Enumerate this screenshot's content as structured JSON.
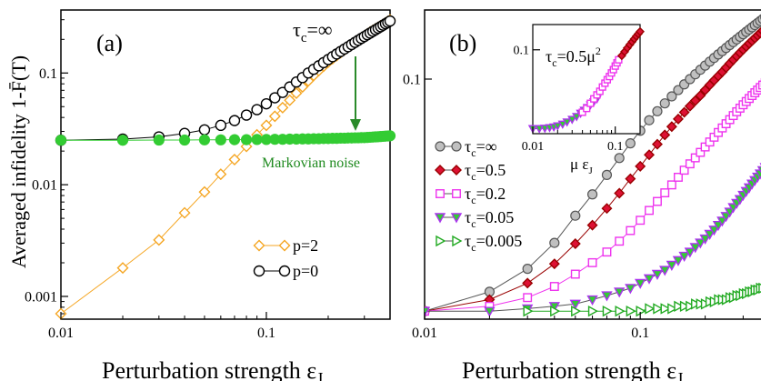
{
  "chart_data": [
    {
      "type": "line",
      "panel_label": "(a)",
      "xlabel": "Perturbation strength ε",
      "xlabel_sub": "J",
      "ylabel": "Averaged infidelity 1-F̄(T)",
      "xscale": "log",
      "yscale": "log",
      "xlim": [
        0.01,
        0.4
      ],
      "ylim": [
        0.0007,
        0.34
      ],
      "xticks": [
        {
          "value": 0.01,
          "label": "0.01"
        },
        {
          "value": 0.1,
          "label": "0.1"
        }
      ],
      "yticks": [
        {
          "value": 0.001,
          "label": "0.001"
        },
        {
          "value": 0.01,
          "label": "0.01"
        },
        {
          "value": 0.1,
          "label": "0.1"
        }
      ],
      "series": [
        {
          "name": "p=2",
          "marker": "diamond-open",
          "color": "#f5a623",
          "x": [
            0.01,
            0.02,
            0.03,
            0.04,
            0.05,
            0.06,
            0.07,
            0.08,
            0.09,
            0.1,
            0.11,
            0.12,
            0.13,
            0.14,
            0.15,
            0.16,
            0.17,
            0.18,
            0.19,
            0.2,
            0.21,
            0.22,
            0.23,
            0.24,
            0.25,
            0.26,
            0.27,
            0.28,
            0.29,
            0.3,
            0.31,
            0.32,
            0.33,
            0.34,
            0.35,
            0.36,
            0.37,
            0.38,
            0.39,
            0.4
          ],
          "y": [
            0.0007,
            0.0018,
            0.0032,
            0.0056,
            0.0086,
            0.0124,
            0.0168,
            0.022,
            0.028,
            0.034,
            0.041,
            0.049,
            0.057,
            0.066,
            0.075,
            0.085,
            0.095,
            0.105,
            0.115,
            0.125,
            0.134,
            0.143,
            0.152,
            0.161,
            0.17,
            0.179,
            0.188,
            0.197,
            0.206,
            0.215,
            0.224,
            0.233,
            0.241,
            0.249,
            0.257,
            0.265,
            0.273,
            0.281,
            0.29,
            0.298
          ]
        },
        {
          "name": "p=0",
          "marker": "circle-open",
          "color": "#000000",
          "x": [
            0.01,
            0.02,
            0.03,
            0.04,
            0.05,
            0.06,
            0.07,
            0.08,
            0.09,
            0.1,
            0.11,
            0.12,
            0.13,
            0.14,
            0.15,
            0.16,
            0.17,
            0.18,
            0.19,
            0.2,
            0.21,
            0.22,
            0.23,
            0.24,
            0.25,
            0.26,
            0.27,
            0.28,
            0.29,
            0.3,
            0.31,
            0.32,
            0.33,
            0.34,
            0.35,
            0.36,
            0.37,
            0.38,
            0.39,
            0.4
          ],
          "y": [
            0.025,
            0.0256,
            0.0268,
            0.0288,
            0.031,
            0.034,
            0.0375,
            0.042,
            0.047,
            0.053,
            0.06,
            0.067,
            0.075,
            0.083,
            0.091,
            0.1,
            0.108,
            0.116,
            0.124,
            0.132,
            0.14,
            0.148,
            0.156,
            0.164,
            0.172,
            0.18,
            0.188,
            0.196,
            0.204,
            0.212,
            0.22,
            0.228,
            0.236,
            0.244,
            0.252,
            0.26,
            0.268,
            0.276,
            0.284,
            0.292
          ]
        },
        {
          "name": "Markovian noise",
          "marker": "circle-filled",
          "color": "#33cc33",
          "x": [
            0.01,
            0.02,
            0.03,
            0.04,
            0.05,
            0.06,
            0.07,
            0.08,
            0.09,
            0.1,
            0.11,
            0.12,
            0.13,
            0.14,
            0.15,
            0.16,
            0.17,
            0.18,
            0.19,
            0.2,
            0.21,
            0.22,
            0.23,
            0.24,
            0.25,
            0.26,
            0.27,
            0.28,
            0.29,
            0.3,
            0.31,
            0.32,
            0.33,
            0.34,
            0.35,
            0.36,
            0.37,
            0.38,
            0.39,
            0.4
          ],
          "y": [
            0.025,
            0.025,
            0.0251,
            0.0251,
            0.0252,
            0.0252,
            0.0253,
            0.0253,
            0.0254,
            0.0254,
            0.0255,
            0.0255,
            0.0256,
            0.0256,
            0.0257,
            0.0257,
            0.0258,
            0.0258,
            0.0259,
            0.0259,
            0.026,
            0.026,
            0.0261,
            0.0261,
            0.0262,
            0.0262,
            0.0263,
            0.0263,
            0.0264,
            0.0264,
            0.0265,
            0.0266,
            0.0267,
            0.0268,
            0.0269,
            0.027,
            0.0271,
            0.0272,
            0.0273,
            0.0274
          ]
        }
      ],
      "annotations": {
        "tau_label": "τ",
        "tau_sub": "c",
        "tau_value": "=∞",
        "markovian_label": "Markovian noise"
      },
      "legend": [
        {
          "label": "p=2",
          "marker": "diamond-open",
          "color": "#f5a623"
        },
        {
          "label": "p=0",
          "marker": "circle-open",
          "color": "#000000"
        }
      ]
    },
    {
      "type": "line",
      "panel_label": "(b)",
      "xlabel": "Perturbation strength ε",
      "xlabel_sub": "J",
      "xscale": "log",
      "yscale": "log",
      "xlim": [
        0.01,
        0.4
      ],
      "ylim": [
        0.0022,
        0.3
      ],
      "xticks": [
        {
          "value": 0.01,
          "label": "0.01"
        },
        {
          "value": 0.1,
          "label": "0.1"
        }
      ],
      "yticks": [
        {
          "value": 0.1,
          "label": "0.1"
        }
      ],
      "series": [
        {
          "name": "τc=∞",
          "legend_label": "=∞",
          "marker": "circle-filled",
          "fill": "#c0c0c0",
          "stroke": "#555555",
          "x": [
            0.01,
            0.02,
            0.03,
            0.04,
            0.05,
            0.06,
            0.07,
            0.08,
            0.09,
            0.1,
            0.11,
            0.12,
            0.13,
            0.14,
            0.15,
            0.16,
            0.17,
            0.18,
            0.19,
            0.2,
            0.21,
            0.22,
            0.23,
            0.24,
            0.25,
            0.26,
            0.27,
            0.28,
            0.29,
            0.3,
            0.31,
            0.32,
            0.33,
            0.34,
            0.35,
            0.36,
            0.37,
            0.38,
            0.39,
            0.4
          ],
          "y": [
            0.0025,
            0.0034,
            0.0049,
            0.0074,
            0.0114,
            0.016,
            0.0218,
            0.0285,
            0.036,
            0.044,
            0.052,
            0.06,
            0.068,
            0.076,
            0.084,
            0.092,
            0.1,
            0.108,
            0.116,
            0.124,
            0.132,
            0.14,
            0.148,
            0.156,
            0.164,
            0.172,
            0.18,
            0.188,
            0.196,
            0.204,
            0.212,
            0.22,
            0.228,
            0.236,
            0.244,
            0.252,
            0.26,
            0.268,
            0.276,
            0.284
          ]
        },
        {
          "name": "τc=0.5",
          "legend_label": "=0.5",
          "marker": "diamond-filled",
          "fill": "#dd1133",
          "stroke": "#990000",
          "x": [
            0.01,
            0.02,
            0.03,
            0.04,
            0.05,
            0.06,
            0.07,
            0.08,
            0.09,
            0.1,
            0.11,
            0.12,
            0.13,
            0.14,
            0.15,
            0.16,
            0.17,
            0.18,
            0.19,
            0.2,
            0.21,
            0.22,
            0.23,
            0.24,
            0.25,
            0.26,
            0.27,
            0.28,
            0.29,
            0.3,
            0.31,
            0.32,
            0.33,
            0.34,
            0.35,
            0.36,
            0.37,
            0.38,
            0.39,
            0.4
          ],
          "y": [
            0.0025,
            0.003,
            0.0039,
            0.0053,
            0.0073,
            0.0098,
            0.0128,
            0.0163,
            0.0205,
            0.025,
            0.03,
            0.0355,
            0.0412,
            0.047,
            0.053,
            0.059,
            0.065,
            0.071,
            0.077,
            0.084,
            0.091,
            0.098,
            0.105,
            0.112,
            0.12,
            0.128,
            0.136,
            0.144,
            0.152,
            0.16,
            0.168,
            0.176,
            0.184,
            0.192,
            0.2,
            0.208,
            0.216,
            0.224,
            0.232,
            0.24
          ]
        },
        {
          "name": "τc=0.2",
          "legend_label": "=0.2",
          "marker": "square-open",
          "stroke": "#ee33ee",
          "x": [
            0.01,
            0.02,
            0.03,
            0.04,
            0.05,
            0.06,
            0.07,
            0.08,
            0.09,
            0.1,
            0.11,
            0.12,
            0.13,
            0.14,
            0.15,
            0.16,
            0.17,
            0.18,
            0.19,
            0.2,
            0.21,
            0.22,
            0.23,
            0.24,
            0.25,
            0.26,
            0.27,
            0.28,
            0.29,
            0.3,
            0.31,
            0.32,
            0.33,
            0.34,
            0.35,
            0.36,
            0.37,
            0.38,
            0.39,
            0.4
          ],
          "y": [
            0.0025,
            0.0027,
            0.0031,
            0.0037,
            0.0045,
            0.0054,
            0.0064,
            0.0076,
            0.009,
            0.0106,
            0.0124,
            0.0143,
            0.0164,
            0.0186,
            0.021,
            0.0235,
            0.026,
            0.0286,
            0.0312,
            0.034,
            0.0368,
            0.0397,
            0.0428,
            0.046,
            0.0492,
            0.0525,
            0.056,
            0.0595,
            0.063,
            0.0665,
            0.07,
            0.0735,
            0.077,
            0.0805,
            0.084,
            0.0875,
            0.091,
            0.0945,
            0.098,
            0.102
          ]
        },
        {
          "name": "τc=0.05",
          "legend_label": "=0.05",
          "marker": "triangle-down",
          "fill": "#33cc33",
          "stroke": "#aa33ee",
          "x": [
            0.01,
            0.02,
            0.03,
            0.04,
            0.05,
            0.06,
            0.07,
            0.08,
            0.09,
            0.1,
            0.11,
            0.12,
            0.13,
            0.14,
            0.15,
            0.16,
            0.17,
            0.18,
            0.19,
            0.2,
            0.21,
            0.22,
            0.23,
            0.24,
            0.25,
            0.26,
            0.27,
            0.28,
            0.29,
            0.3,
            0.31,
            0.32,
            0.33,
            0.34,
            0.35,
            0.36,
            0.37,
            0.38,
            0.39,
            0.4
          ],
          "y": [
            0.0025,
            0.0025,
            0.0026,
            0.0027,
            0.0028,
            0.003,
            0.0032,
            0.0034,
            0.0036,
            0.0039,
            0.0042,
            0.0045,
            0.0048,
            0.0052,
            0.0056,
            0.006,
            0.0064,
            0.0069,
            0.0074,
            0.0079,
            0.0085,
            0.0091,
            0.0098,
            0.0105,
            0.0113,
            0.0121,
            0.013,
            0.0139,
            0.0148,
            0.0158,
            0.0168,
            0.0178,
            0.0189,
            0.02,
            0.0211,
            0.0222,
            0.0234,
            0.0246,
            0.0258,
            0.027
          ]
        },
        {
          "name": "τc=0.005",
          "legend_label": "=0.005",
          "marker": "triangle-right-open",
          "stroke": "#22aa22",
          "x": [
            0.03,
            0.04,
            0.05,
            0.06,
            0.07,
            0.08,
            0.09,
            0.1,
            0.11,
            0.12,
            0.13,
            0.14,
            0.15,
            0.16,
            0.17,
            0.18,
            0.19,
            0.2,
            0.21,
            0.22,
            0.23,
            0.24,
            0.25,
            0.26,
            0.27,
            0.28,
            0.29,
            0.3,
            0.31,
            0.32,
            0.33,
            0.34,
            0.35,
            0.36,
            0.37,
            0.38,
            0.39,
            0.4
          ],
          "y": [
            0.0025,
            0.0025,
            0.0025,
            0.0025,
            0.0025,
            0.0025,
            0.0025,
            0.0025,
            0.0026,
            0.0026,
            0.0026,
            0.0026,
            0.0027,
            0.0027,
            0.0027,
            0.0028,
            0.0028,
            0.0028,
            0.0029,
            0.0029,
            0.003,
            0.003,
            0.003,
            0.0031,
            0.0031,
            0.0032,
            0.0032,
            0.0033,
            0.0033,
            0.0034,
            0.0034,
            0.0035,
            0.0035,
            0.0036,
            0.0036,
            0.0037,
            0.0037,
            0.0038
          ]
        }
      ],
      "legend_tau": "τ",
      "legend_tau_sub": "c"
    },
    {
      "type": "line",
      "panel_label": "inset",
      "xlabel": "μ ε",
      "xlabel_sub": "J",
      "title": "τ",
      "title_sub": "c",
      "title_rest": "=0.5μ",
      "title_sup": "2",
      "xscale": "log",
      "yscale": "log",
      "xlim": [
        0.01,
        0.2
      ],
      "ylim": [
        0.01,
        0.2
      ],
      "xticks": [
        {
          "value": 0.01,
          "label": "0.01"
        },
        {
          "value": 0.1,
          "label": "0.1"
        }
      ],
      "yticks": [
        {
          "value": 0.1,
          "label": "0.1"
        }
      ],
      "series": [
        {
          "name": "τc=0.05",
          "marker": "triangle-down",
          "fill": "#33cc33",
          "stroke": "#aa33ee",
          "x": [
            0.01,
            0.012,
            0.014,
            0.016,
            0.018,
            0.02,
            0.023,
            0.026,
            0.03,
            0.034,
            0.038,
            0.042,
            0.046,
            0.05,
            0.055,
            0.06
          ],
          "y": [
            0.0115,
            0.0115,
            0.0116,
            0.0118,
            0.012,
            0.0124,
            0.013,
            0.0138,
            0.0148,
            0.016,
            0.0175,
            0.019,
            0.0205,
            0.022,
            0.024,
            0.026
          ]
        },
        {
          "name": "τc=0.2",
          "marker": "square-open",
          "stroke": "#ee33ee",
          "x": [
            0.04,
            0.045,
            0.05,
            0.055,
            0.06,
            0.065,
            0.07,
            0.075,
            0.08,
            0.085,
            0.09,
            0.095,
            0.1,
            0.105,
            0.11
          ],
          "y": [
            0.018,
            0.02,
            0.023,
            0.026,
            0.029,
            0.032,
            0.036,
            0.04,
            0.044,
            0.048,
            0.053,
            0.058,
            0.064,
            0.07,
            0.076
          ]
        },
        {
          "name": "τc=0.5",
          "marker": "diamond-filled",
          "fill": "#dd1133",
          "stroke": "#990000",
          "x": [
            0.12,
            0.13,
            0.14,
            0.15,
            0.16,
            0.17,
            0.18,
            0.19,
            0.2
          ],
          "y": [
            0.085,
            0.095,
            0.105,
            0.115,
            0.125,
            0.135,
            0.145,
            0.155,
            0.165
          ]
        }
      ]
    }
  ]
}
